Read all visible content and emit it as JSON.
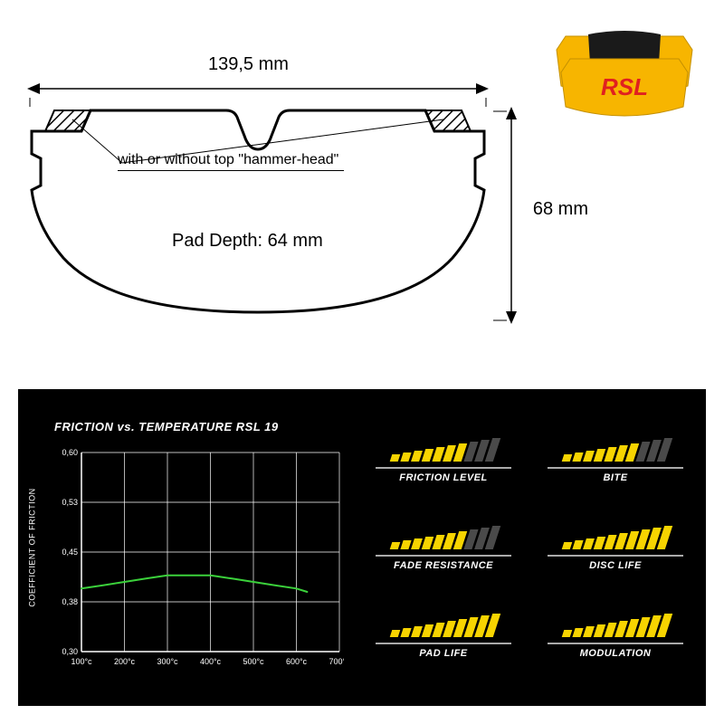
{
  "diagram": {
    "width_label": "139,5 mm",
    "height_label": "68 mm",
    "depth_label": "Pad Depth: 64 mm",
    "annotation": "with or without top \"hammer-head\"",
    "stroke_color": "#000000",
    "hatch_color": "#000000"
  },
  "product_image": {
    "body_color": "#f7b500",
    "logo_text": "RSL",
    "logo_color": "#e02020",
    "inner_color": "#1a1a1a"
  },
  "chart": {
    "title": "FRICTION vs. TEMPERATURE RSL 19",
    "ylabel": "COEFFICIENT OF FRICTION",
    "ylim": [
      0.3,
      0.6
    ],
    "ytick_step": 0.075,
    "ytick_labels": [
      "0,30",
      "0,38",
      "0,45",
      "0,53",
      "0,60"
    ],
    "xtick_labels": [
      "100°c",
      "200°c",
      "300°c",
      "400°c",
      "500°c",
      "600°c",
      "700°c"
    ],
    "xlim": [
      100,
      700
    ],
    "series_color": "#3bd13b",
    "grid_color": "#ffffff",
    "background_color": "#000000",
    "line_width": 2,
    "data_x": [
      100,
      150,
      200,
      250,
      300,
      350,
      400,
      450,
      500,
      550,
      600,
      625
    ],
    "data_y": [
      0.395,
      0.4,
      0.405,
      0.41,
      0.415,
      0.415,
      0.415,
      0.41,
      0.405,
      0.4,
      0.395,
      0.39
    ]
  },
  "ratings": {
    "bar_count": 10,
    "active_color": "#f7d400",
    "inactive_color": "#4a4a4a",
    "min_bar_height": 8,
    "max_bar_height": 26,
    "items": [
      {
        "label": "FRICTION LEVEL",
        "value": 7
      },
      {
        "label": "BITE",
        "value": 7
      },
      {
        "label": "FADE RESISTANCE",
        "value": 7
      },
      {
        "label": "DISC LIFE",
        "value": 10
      },
      {
        "label": "PAD LIFE",
        "value": 10
      },
      {
        "label": "MODULATION",
        "value": 10
      }
    ]
  }
}
